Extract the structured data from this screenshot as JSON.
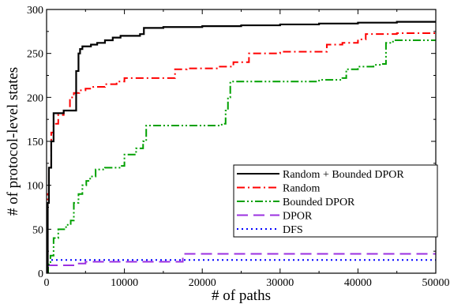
{
  "chart_data": {
    "type": "line",
    "xlabel": "# of paths",
    "ylabel": "# of protocol-level states",
    "xlim": [
      0,
      50000
    ],
    "ylim": [
      0,
      300
    ],
    "xticks": [
      0,
      10000,
      20000,
      30000,
      40000,
      50000
    ],
    "yticks": [
      0,
      50,
      100,
      150,
      200,
      250,
      300
    ],
    "grid": false,
    "legend_position": "right",
    "series": [
      {
        "name": "Random + Bounded DPOR",
        "color": "#000000",
        "dash": "solid",
        "step": true,
        "x": [
          0,
          150,
          300,
          600,
          900,
          2200,
          3000,
          3800,
          4100,
          4300,
          4600,
          5700,
          6500,
          7500,
          8500,
          9500,
          12000,
          12500,
          15000,
          20000,
          25000,
          30000,
          35000,
          40000,
          45000,
          50000
        ],
        "y": [
          0,
          80,
          120,
          150,
          182,
          185,
          185,
          230,
          250,
          255,
          258,
          260,
          262,
          265,
          268,
          270,
          272,
          279,
          280,
          281,
          282,
          283,
          284,
          285,
          286,
          286
        ]
      },
      {
        "name": "Random",
        "color": "#ff0000",
        "dash": "dashdot",
        "step": true,
        "x": [
          0,
          150,
          300,
          600,
          900,
          1500,
          2200,
          3000,
          3500,
          4200,
          5000,
          6000,
          7500,
          9000,
          10000,
          12500,
          16500,
          18000,
          22000,
          24000,
          26000,
          30000,
          33000,
          36000,
          38000,
          40000,
          41000,
          45000,
          50000
        ],
        "y": [
          0,
          90,
          120,
          160,
          170,
          180,
          185,
          200,
          205,
          208,
          210,
          212,
          215,
          218,
          222,
          222,
          232,
          233,
          235,
          240,
          250,
          252,
          252,
          260,
          262,
          266,
          272,
          273,
          273
        ]
      },
      {
        "name": "Bounded DPOR",
        "color": "#00a000",
        "dash": "dashdotdot",
        "step": true,
        "x": [
          0,
          200,
          500,
          900,
          1500,
          2500,
          3100,
          3500,
          4100,
          4600,
          5100,
          5600,
          6300,
          7500,
          9500,
          10000,
          11500,
          12400,
          12800,
          14000,
          22500,
          23000,
          23300,
          23600,
          25000,
          30000,
          35000,
          38000,
          38500,
          40000,
          42000,
          43000,
          43600,
          44500,
          50000
        ],
        "y": [
          0,
          10,
          20,
          40,
          50,
          55,
          60,
          80,
          90,
          100,
          105,
          110,
          118,
          120,
          122,
          135,
          142,
          150,
          168,
          168,
          170,
          185,
          200,
          218,
          218,
          218,
          220,
          222,
          232,
          235,
          237,
          238,
          262,
          265,
          265
        ]
      },
      {
        "name": "DPOR",
        "color": "#9b30e0",
        "dash": "longdash",
        "step": true,
        "x": [
          0,
          1000,
          4000,
          5000,
          17500,
          50000
        ],
        "y": [
          9,
          9,
          11,
          13,
          22,
          22
        ]
      },
      {
        "name": "DFS",
        "color": "#0000ff",
        "dash": "dotted",
        "step": true,
        "x": [
          0,
          50000
        ],
        "y": [
          15,
          15
        ]
      }
    ]
  }
}
